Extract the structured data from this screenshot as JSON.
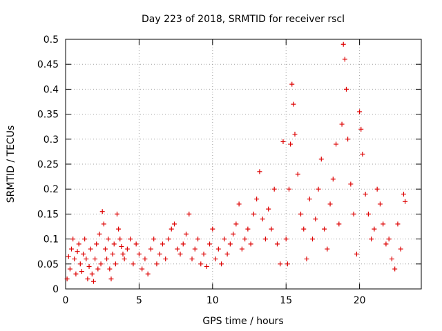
{
  "chart_data": {
    "type": "scatter",
    "title": "Day 223 of 2018, SRMTID for receiver rscl",
    "xlabel": "GPS time / hours",
    "ylabel": "SRMTID / TECUs",
    "xlim": [
      0,
      24.2
    ],
    "ylim": [
      0,
      0.5
    ],
    "xticks": [
      0,
      5,
      10,
      15,
      20
    ],
    "yticks": [
      0,
      0.05,
      0.1,
      0.15,
      0.2,
      0.25,
      0.3,
      0.35,
      0.4,
      0.45,
      0.5
    ],
    "xtick_labels": [
      "0",
      "5",
      "10",
      "15",
      "20"
    ],
    "ytick_labels": [
      "0",
      "0.05",
      "0.1",
      "0.15",
      "0.2",
      "0.25",
      "0.3",
      "0.35",
      "0.4",
      "0.45",
      "0.5"
    ],
    "grid": true,
    "marker": "+",
    "series": [
      {
        "name": "SRMTID",
        "color": "#dd0000",
        "points": [
          [
            0.1,
            0.02
          ],
          [
            0.2,
            0.065
          ],
          [
            0.3,
            0.04
          ],
          [
            0.4,
            0.08
          ],
          [
            0.5,
            0.1
          ],
          [
            0.6,
            0.06
          ],
          [
            0.7,
            0.03
          ],
          [
            0.8,
            0.075
          ],
          [
            0.9,
            0.09
          ],
          [
            1.0,
            0.05
          ],
          [
            1.1,
            0.035
          ],
          [
            1.2,
            0.07
          ],
          [
            1.3,
            0.1
          ],
          [
            1.4,
            0.06
          ],
          [
            1.5,
            0.02
          ],
          [
            1.6,
            0.045
          ],
          [
            1.7,
            0.08
          ],
          [
            1.8,
            0.03
          ],
          [
            1.9,
            0.015
          ],
          [
            2.0,
            0.06
          ],
          [
            2.1,
            0.09
          ],
          [
            2.2,
            0.04
          ],
          [
            2.3,
            0.11
          ],
          [
            2.4,
            0.05
          ],
          [
            2.5,
            0.155
          ],
          [
            2.6,
            0.13
          ],
          [
            2.7,
            0.08
          ],
          [
            2.8,
            0.06
          ],
          [
            2.9,
            0.1
          ],
          [
            3.0,
            0.04
          ],
          [
            3.1,
            0.02
          ],
          [
            3.2,
            0.07
          ],
          [
            3.3,
            0.09
          ],
          [
            3.4,
            0.05
          ],
          [
            3.5,
            0.15
          ],
          [
            3.6,
            0.12
          ],
          [
            3.7,
            0.1
          ],
          [
            3.8,
            0.085
          ],
          [
            3.9,
            0.07
          ],
          [
            4.0,
            0.06
          ],
          [
            4.2,
            0.08
          ],
          [
            4.4,
            0.1
          ],
          [
            4.6,
            0.05
          ],
          [
            4.8,
            0.09
          ],
          [
            5.0,
            0.07
          ],
          [
            5.2,
            0.04
          ],
          [
            5.4,
            0.06
          ],
          [
            5.6,
            0.03
          ],
          [
            5.8,
            0.08
          ],
          [
            6.0,
            0.1
          ],
          [
            6.2,
            0.05
          ],
          [
            6.4,
            0.07
          ],
          [
            6.6,
            0.09
          ],
          [
            6.8,
            0.06
          ],
          [
            7.0,
            0.1
          ],
          [
            7.2,
            0.12
          ],
          [
            7.4,
            0.13
          ],
          [
            7.6,
            0.08
          ],
          [
            7.8,
            0.07
          ],
          [
            8.0,
            0.09
          ],
          [
            8.2,
            0.11
          ],
          [
            8.4,
            0.15
          ],
          [
            8.6,
            0.06
          ],
          [
            8.8,
            0.08
          ],
          [
            9.0,
            0.1
          ],
          [
            9.2,
            0.05
          ],
          [
            9.4,
            0.07
          ],
          [
            9.6,
            0.045
          ],
          [
            9.8,
            0.09
          ],
          [
            10.0,
            0.12
          ],
          [
            10.2,
            0.06
          ],
          [
            10.4,
            0.08
          ],
          [
            10.6,
            0.05
          ],
          [
            10.8,
            0.1
          ],
          [
            11.0,
            0.07
          ],
          [
            11.2,
            0.09
          ],
          [
            11.4,
            0.11
          ],
          [
            11.6,
            0.13
          ],
          [
            11.8,
            0.17
          ],
          [
            12.0,
            0.08
          ],
          [
            12.2,
            0.1
          ],
          [
            12.4,
            0.12
          ],
          [
            12.6,
            0.09
          ],
          [
            12.8,
            0.15
          ],
          [
            13.0,
            0.18
          ],
          [
            13.2,
            0.235
          ],
          [
            13.4,
            0.14
          ],
          [
            13.6,
            0.1
          ],
          [
            13.8,
            0.16
          ],
          [
            14.0,
            0.12
          ],
          [
            14.2,
            0.2
          ],
          [
            14.4,
            0.09
          ],
          [
            14.6,
            0.05
          ],
          [
            14.8,
            0.295
          ],
          [
            15.0,
            0.1
          ],
          [
            15.1,
            0.05
          ],
          [
            15.2,
            0.2
          ],
          [
            15.3,
            0.29
          ],
          [
            15.4,
            0.41
          ],
          [
            15.5,
            0.37
          ],
          [
            15.6,
            0.31
          ],
          [
            15.8,
            0.23
          ],
          [
            16.0,
            0.15
          ],
          [
            16.2,
            0.12
          ],
          [
            16.4,
            0.06
          ],
          [
            16.6,
            0.18
          ],
          [
            16.8,
            0.1
          ],
          [
            17.0,
            0.14
          ],
          [
            17.2,
            0.2
          ],
          [
            17.4,
            0.26
          ],
          [
            17.6,
            0.12
          ],
          [
            17.8,
            0.08
          ],
          [
            18.0,
            0.17
          ],
          [
            18.2,
            0.22
          ],
          [
            18.4,
            0.29
          ],
          [
            18.6,
            0.13
          ],
          [
            18.8,
            0.33
          ],
          [
            18.9,
            0.49
          ],
          [
            19.0,
            0.46
          ],
          [
            19.1,
            0.4
          ],
          [
            19.2,
            0.3
          ],
          [
            19.4,
            0.21
          ],
          [
            19.6,
            0.15
          ],
          [
            19.8,
            0.07
          ],
          [
            20.0,
            0.355
          ],
          [
            20.1,
            0.32
          ],
          [
            20.2,
            0.27
          ],
          [
            20.4,
            0.19
          ],
          [
            20.6,
            0.15
          ],
          [
            20.8,
            0.1
          ],
          [
            21.0,
            0.12
          ],
          [
            21.2,
            0.2
          ],
          [
            21.4,
            0.17
          ],
          [
            21.6,
            0.13
          ],
          [
            21.8,
            0.09
          ],
          [
            22.0,
            0.1
          ],
          [
            22.2,
            0.06
          ],
          [
            22.4,
            0.04
          ],
          [
            22.6,
            0.13
          ],
          [
            22.8,
            0.08
          ],
          [
            23.0,
            0.19
          ],
          [
            23.1,
            0.175
          ]
        ]
      }
    ]
  }
}
